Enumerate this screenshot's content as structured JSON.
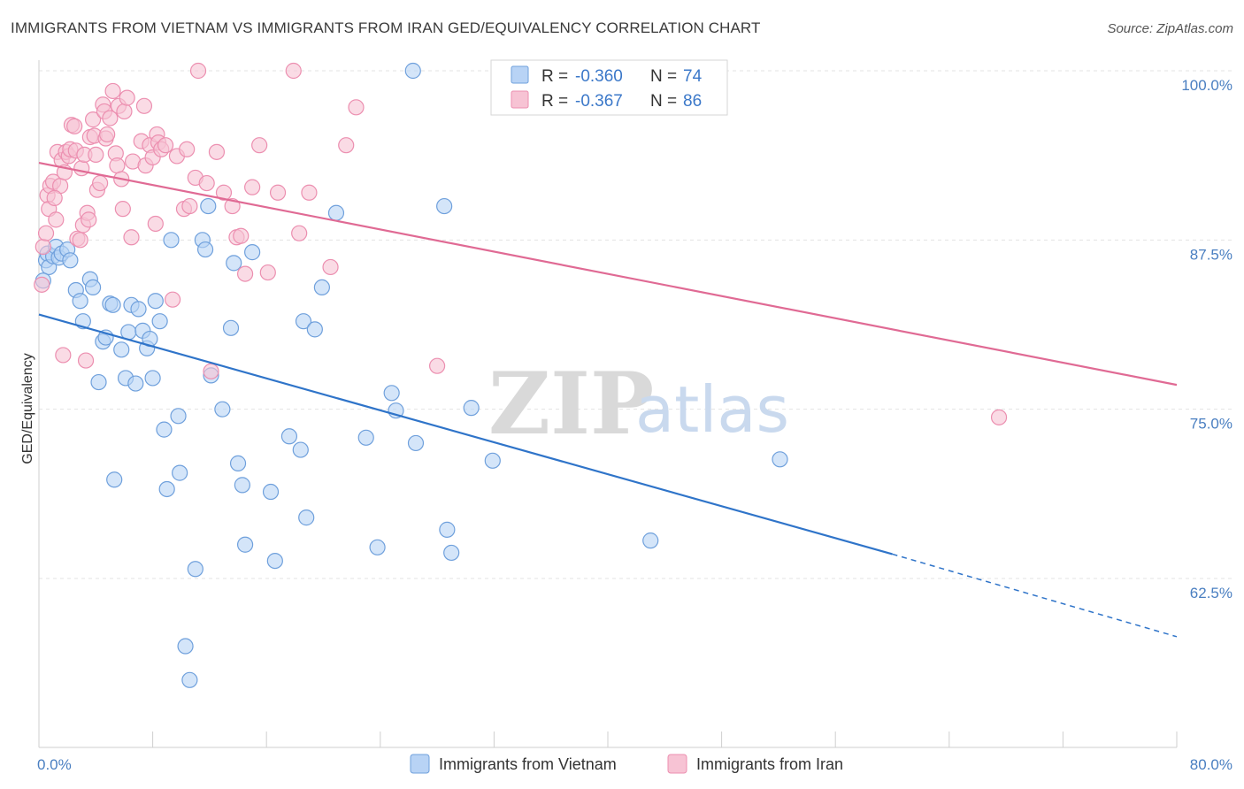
{
  "title": "IMMIGRANTS FROM VIETNAM VS IMMIGRANTS FROM IRAN GED/EQUIVALENCY CORRELATION CHART",
  "source": "Source: ZipAtlas.com",
  "watermark": {
    "zip": "ZIP",
    "atlas": "atlas"
  },
  "colors": {
    "vietnam_fill": "#b8d3f5",
    "vietnam_stroke": "#6fa0dc",
    "vietnam_line": "#2f74c9",
    "iran_fill": "#f7c3d4",
    "iran_stroke": "#ec8fb0",
    "iran_line": "#e06a94",
    "grid": "#e3e3e3",
    "tick_label": "#4a7fc1"
  },
  "legend": {
    "rows": [
      {
        "r_label": "R =",
        "r_value": "-0.360",
        "n_label": "N =",
        "n_value": "74"
      },
      {
        "r_label": "R =",
        "r_value": "-0.367",
        "n_label": "N =",
        "n_value": "86"
      }
    ]
  },
  "chart_data": {
    "type": "scatter",
    "title": "IMMIGRANTS FROM VIETNAM VS IMMIGRANTS FROM IRAN GED/EQUIVALENCY CORRELATION CHART",
    "xlabel": "",
    "ylabel": "GED/Equivalency",
    "xlim": [
      0,
      80
    ],
    "ylim": [
      51,
      102
    ],
    "x_tick_labels": [
      "0.0%",
      "80.0%"
    ],
    "y_ticks": [
      62.5,
      75.0,
      87.5,
      100.0
    ],
    "y_tick_labels": [
      "62.5%",
      "75.0%",
      "87.5%",
      "100.0%"
    ],
    "grid": true,
    "legend_position": "top-center",
    "series": [
      {
        "name": "Immigrants from Vietnam",
        "r": -0.36,
        "n": 74,
        "trend": {
          "x0": 0,
          "y0": 82.0,
          "x1": 60,
          "y1": 64.3,
          "dash_x1": 80,
          "dash_y1": 58.2
        },
        "points": [
          [
            0.5,
            86.0
          ],
          [
            0.6,
            86.5
          ],
          [
            0.7,
            85.5
          ],
          [
            1.0,
            86.3
          ],
          [
            1.2,
            87.0
          ],
          [
            1.4,
            86.2
          ],
          [
            1.6,
            86.5
          ],
          [
            2.0,
            86.8
          ],
          [
            2.2,
            86.0
          ],
          [
            2.6,
            83.8
          ],
          [
            2.9,
            83.0
          ],
          [
            3.1,
            81.5
          ],
          [
            3.6,
            84.6
          ],
          [
            3.8,
            84.0
          ],
          [
            4.2,
            77.0
          ],
          [
            4.5,
            80.0
          ],
          [
            4.7,
            80.3
          ],
          [
            5.0,
            82.8
          ],
          [
            5.2,
            82.7
          ],
          [
            5.3,
            69.8
          ],
          [
            5.8,
            79.4
          ],
          [
            6.1,
            77.3
          ],
          [
            6.3,
            80.7
          ],
          [
            6.5,
            82.7
          ],
          [
            6.8,
            76.9
          ],
          [
            7.0,
            82.4
          ],
          [
            7.3,
            80.8
          ],
          [
            7.6,
            79.5
          ],
          [
            7.8,
            80.2
          ],
          [
            8.0,
            77.3
          ],
          [
            8.2,
            83.0
          ],
          [
            8.5,
            81.5
          ],
          [
            8.8,
            73.5
          ],
          [
            9.0,
            69.1
          ],
          [
            9.3,
            87.5
          ],
          [
            9.8,
            74.5
          ],
          [
            9.9,
            70.3
          ],
          [
            10.3,
            57.5
          ],
          [
            10.6,
            55.0
          ],
          [
            11.0,
            63.2
          ],
          [
            11.5,
            87.5
          ],
          [
            11.7,
            86.8
          ],
          [
            11.9,
            90.0
          ],
          [
            12.1,
            77.5
          ],
          [
            12.9,
            75.0
          ],
          [
            13.5,
            81.0
          ],
          [
            13.7,
            85.8
          ],
          [
            14.0,
            71.0
          ],
          [
            14.3,
            69.4
          ],
          [
            14.5,
            65.0
          ],
          [
            15.0,
            86.6
          ],
          [
            16.3,
            68.9
          ],
          [
            16.6,
            63.8
          ],
          [
            17.6,
            73.0
          ],
          [
            18.4,
            72.0
          ],
          [
            18.6,
            81.5
          ],
          [
            18.8,
            67.0
          ],
          [
            19.4,
            80.9
          ],
          [
            19.9,
            84.0
          ],
          [
            20.9,
            89.5
          ],
          [
            23.0,
            72.9
          ],
          [
            23.8,
            64.8
          ],
          [
            24.8,
            76.2
          ],
          [
            25.1,
            74.9
          ],
          [
            26.3,
            100.0
          ],
          [
            26.5,
            72.5
          ],
          [
            28.5,
            90.0
          ],
          [
            28.7,
            66.1
          ],
          [
            29.0,
            64.4
          ],
          [
            30.4,
            75.1
          ],
          [
            31.9,
            71.2
          ],
          [
            43.0,
            65.3
          ],
          [
            52.1,
            71.3
          ],
          [
            0.3,
            84.5
          ]
        ]
      },
      {
        "name": "Immigrants from Iran",
        "r": -0.367,
        "n": 86,
        "trend": {
          "x0": 0,
          "y0": 93.2,
          "x1": 80,
          "y1": 76.8
        },
        "points": [
          [
            0.3,
            87.0
          ],
          [
            0.5,
            88.0
          ],
          [
            0.6,
            90.8
          ],
          [
            0.7,
            89.8
          ],
          [
            0.8,
            91.5
          ],
          [
            1.0,
            91.8
          ],
          [
            1.2,
            89.0
          ],
          [
            1.3,
            94.0
          ],
          [
            1.5,
            91.5
          ],
          [
            1.6,
            93.4
          ],
          [
            1.7,
            79.0
          ],
          [
            1.8,
            92.5
          ],
          [
            1.9,
            94.0
          ],
          [
            2.1,
            93.7
          ],
          [
            2.2,
            94.2
          ],
          [
            2.3,
            96.0
          ],
          [
            2.5,
            95.9
          ],
          [
            2.6,
            94.1
          ],
          [
            2.7,
            87.6
          ],
          [
            2.9,
            87.5
          ],
          [
            3.0,
            92.8
          ],
          [
            3.1,
            88.6
          ],
          [
            3.2,
            93.8
          ],
          [
            3.3,
            78.6
          ],
          [
            3.4,
            89.5
          ],
          [
            3.5,
            89.0
          ],
          [
            3.6,
            95.1
          ],
          [
            3.8,
            96.4
          ],
          [
            3.9,
            95.2
          ],
          [
            4.0,
            93.8
          ],
          [
            4.1,
            91.2
          ],
          [
            4.3,
            91.7
          ],
          [
            4.5,
            97.5
          ],
          [
            4.6,
            97.0
          ],
          [
            4.7,
            95.0
          ],
          [
            4.8,
            95.3
          ],
          [
            5.0,
            96.5
          ],
          [
            5.2,
            98.5
          ],
          [
            5.4,
            93.9
          ],
          [
            5.5,
            93.0
          ],
          [
            5.6,
            97.4
          ],
          [
            5.8,
            92.0
          ],
          [
            5.9,
            89.8
          ],
          [
            6.0,
            97.0
          ],
          [
            6.2,
            98.0
          ],
          [
            6.5,
            87.7
          ],
          [
            6.6,
            93.3
          ],
          [
            7.2,
            94.8
          ],
          [
            7.4,
            97.4
          ],
          [
            7.5,
            93.0
          ],
          [
            7.8,
            94.5
          ],
          [
            8.0,
            93.6
          ],
          [
            8.2,
            88.7
          ],
          [
            8.3,
            95.3
          ],
          [
            8.4,
            94.7
          ],
          [
            8.6,
            94.2
          ],
          [
            8.9,
            94.5
          ],
          [
            9.4,
            83.1
          ],
          [
            9.7,
            93.7
          ],
          [
            10.2,
            89.8
          ],
          [
            10.4,
            94.2
          ],
          [
            10.6,
            90.0
          ],
          [
            11.0,
            92.1
          ],
          [
            11.2,
            100.0
          ],
          [
            11.8,
            91.7
          ],
          [
            12.1,
            77.8
          ],
          [
            12.5,
            94.0
          ],
          [
            13.0,
            91.0
          ],
          [
            13.6,
            90.0
          ],
          [
            13.9,
            87.7
          ],
          [
            14.2,
            87.8
          ],
          [
            14.5,
            85.0
          ],
          [
            15.0,
            91.4
          ],
          [
            15.5,
            94.5
          ],
          [
            16.1,
            85.1
          ],
          [
            16.8,
            91.0
          ],
          [
            17.9,
            100.0
          ],
          [
            18.3,
            88.0
          ],
          [
            19.0,
            91.0
          ],
          [
            20.5,
            85.5
          ],
          [
            21.6,
            94.5
          ],
          [
            22.3,
            97.3
          ],
          [
            28.0,
            78.2
          ],
          [
            0.2,
            84.2
          ],
          [
            67.5,
            74.4
          ],
          [
            1.1,
            90.6
          ]
        ]
      }
    ]
  }
}
